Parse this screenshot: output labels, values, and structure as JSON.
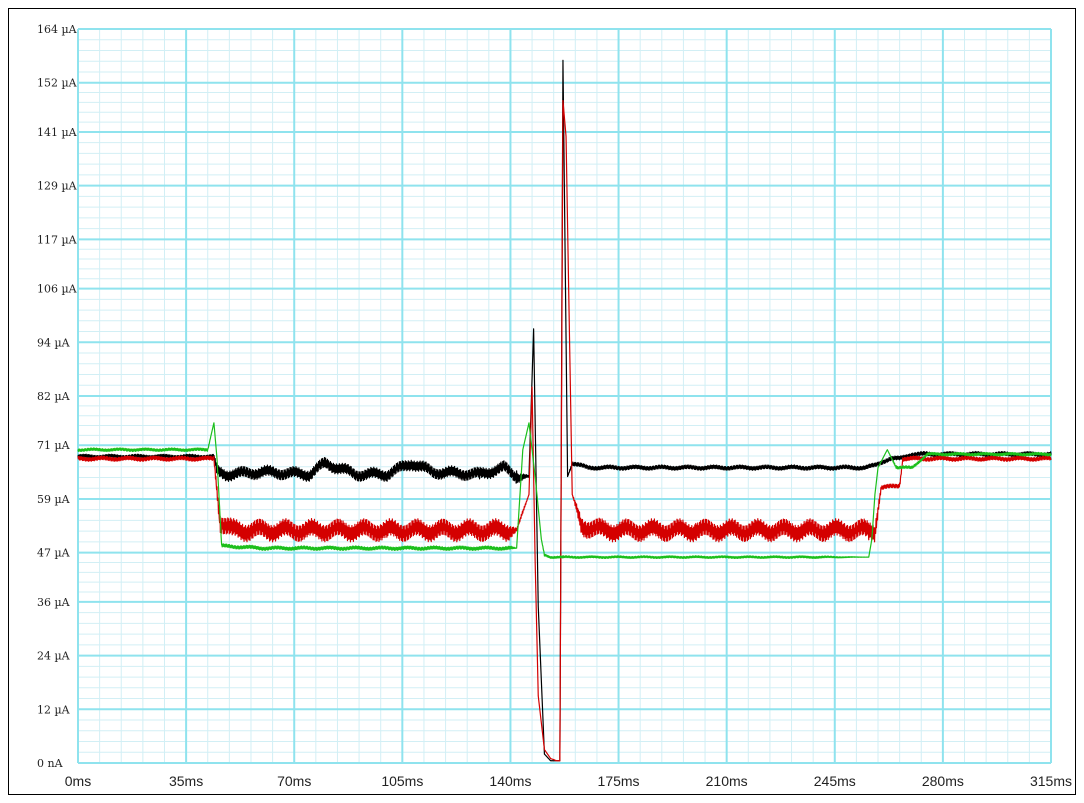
{
  "chart_data": {
    "type": "line",
    "xlim": [
      0,
      315
    ],
    "ylim": [
      0,
      164
    ],
    "x_ticks": [
      0,
      35,
      70,
      105,
      140,
      175,
      210,
      245,
      280,
      315
    ],
    "x_tick_labels": [
      "0ms",
      "35ms",
      "70ms",
      "105ms",
      "140ms",
      "175ms",
      "210ms",
      "245ms",
      "280ms",
      "315ms"
    ],
    "y_ticks": [
      0,
      12,
      24,
      36,
      47,
      59,
      71,
      82,
      94,
      106,
      117,
      129,
      141,
      152,
      164
    ],
    "y_tick_labels": [
      "0 nA",
      "12 µA",
      "24 µA",
      "36 µA",
      "47 µA",
      "59 µA",
      "71 µA",
      "82 µA",
      "94 µA",
      "106 µA",
      "117 µA",
      "129 µA",
      "141 µA",
      "152 µA",
      "164 µA"
    ],
    "grid": true,
    "series": [
      {
        "color": "#000000",
        "x": [
          0,
          44,
          45,
          48,
          60,
          75,
          80,
          90,
          100,
          108,
          115,
          130,
          138,
          142,
          146,
          147.5,
          149,
          151,
          153,
          155,
          156,
          157,
          158.5,
          160,
          165,
          200,
          240,
          255,
          258,
          261,
          263,
          266,
          270,
          290,
          315
        ],
        "y": [
          68.5,
          68.5,
          65,
          64.5,
          65,
          64.5,
          67,
          64.5,
          64.5,
          67,
          65,
          64.5,
          66,
          64,
          64,
          97,
          35,
          2,
          0.5,
          0.5,
          0.5,
          157,
          64,
          67,
          66,
          66,
          66,
          66,
          66.5,
          67.5,
          68,
          68,
          69,
          69,
          69
        ],
        "amp": [
          0.5,
          0.5,
          1.6,
          1.6,
          1.6,
          1.6,
          1.6,
          1.6,
          1.6,
          1.6,
          1.6,
          1.6,
          1.6,
          1.6,
          0.2,
          0,
          0,
          0,
          0,
          0,
          0,
          0,
          0,
          0.6,
          0.6,
          0.6,
          0.6,
          0.6,
          0.6,
          0.6,
          0.6,
          0.6,
          0.6,
          0.6,
          0.6
        ]
      },
      {
        "color": "#d40000",
        "x": [
          0,
          44,
          46,
          50,
          60,
          80,
          100,
          120,
          137,
          139,
          142,
          144,
          146,
          147,
          148,
          149,
          151,
          153,
          155,
          156,
          157,
          158,
          160,
          163,
          170,
          200,
          240,
          256,
          258,
          260,
          266,
          267,
          270,
          290,
          315
        ],
        "y": [
          68,
          68,
          54,
          52,
          52,
          52,
          52,
          52,
          52,
          52,
          52,
          56,
          60,
          84,
          45,
          15,
          3,
          1,
          0.5,
          0.5,
          148,
          140,
          60,
          53,
          52,
          52,
          52,
          52,
          52,
          61.5,
          62,
          68,
          68,
          68,
          68
        ],
        "amp": [
          0.6,
          0.6,
          2.6,
          2.6,
          2.6,
          2.6,
          2.6,
          2.6,
          2.6,
          2.6,
          0.5,
          0.5,
          0,
          0,
          0,
          0,
          0,
          0,
          0,
          0,
          0,
          0,
          0,
          2.6,
          2.6,
          2.6,
          2.6,
          2.6,
          2.6,
          0.6,
          0.6,
          0.6,
          0.6,
          0.6,
          0.6
        ]
      },
      {
        "color": "#1bbf1b",
        "x": [
          0,
          42,
          43,
          44,
          45,
          46.5,
          60,
          90,
          140,
          142,
          144,
          146,
          148,
          150,
          151,
          153,
          157,
          160,
          180,
          210,
          240,
          256,
          257,
          258,
          259,
          262,
          265,
          270,
          275,
          315
        ],
        "y": [
          70,
          70,
          73,
          76,
          68,
          48.5,
          48,
          48,
          48,
          48,
          70,
          76,
          64,
          50,
          46.5,
          46,
          46,
          46,
          46,
          46,
          46,
          46,
          50,
          60,
          66,
          70,
          66,
          66,
          69,
          69
        ],
        "amp": [
          0.4,
          0.4,
          0,
          0,
          0,
          0.5,
          0.5,
          0.5,
          0.5,
          0,
          0,
          0,
          0,
          0,
          0.3,
          0.3,
          0.3,
          0.3,
          0.3,
          0.3,
          0.3,
          0,
          0,
          0,
          0,
          0,
          0.4,
          0.4,
          0.4,
          0.4
        ]
      }
    ]
  }
}
